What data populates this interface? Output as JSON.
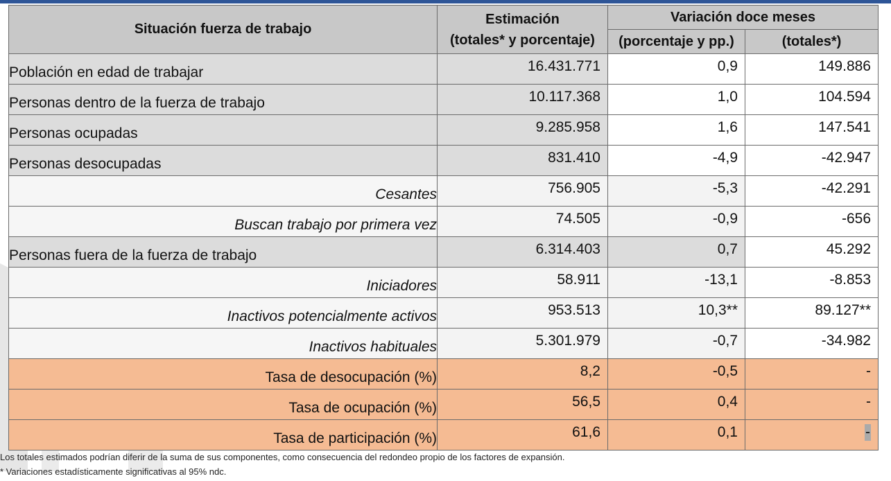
{
  "header": {
    "col1": "Situación fuerza de trabajo",
    "col2_line1": "Estimación",
    "col2_line2": "(totales* y porcentaje)",
    "group": "Variación doce meses",
    "col3": "(porcentaje y pp.)",
    "col4": "(totales*)"
  },
  "rows": [
    {
      "label": "Población en edad de trabajar",
      "estimacion": "16.431.771",
      "var_pct": "0,9",
      "var_tot": "149.886"
    },
    {
      "label": "Personas dentro de la fuerza de trabajo",
      "estimacion": "10.117.368",
      "var_pct": "1,0",
      "var_tot": "104.594"
    },
    {
      "label": "Personas ocupadas",
      "estimacion": "9.285.958",
      "var_pct": "1,6",
      "var_tot": "147.541"
    },
    {
      "label": "Personas desocupadas",
      "estimacion": "831.410",
      "var_pct": "-4,9",
      "var_tot": "-42.947"
    },
    {
      "label": "Cesantes",
      "estimacion": "756.905",
      "var_pct": "-5,3",
      "var_tot": "-42.291"
    },
    {
      "label": "Buscan trabajo por primera vez",
      "estimacion": "74.505",
      "var_pct": "-0,9",
      "var_tot": "-656"
    },
    {
      "label": "Personas fuera de la fuerza de trabajo",
      "estimacion": "6.314.403",
      "var_pct": "0,7",
      "var_tot": "45.292"
    },
    {
      "label": "Iniciadores",
      "estimacion": "58.911",
      "var_pct": "-13,1",
      "var_tot": "-8.853"
    },
    {
      "label": "Inactivos potencialmente activos",
      "estimacion": "953.513",
      "var_pct": "10,3**",
      "var_tot": "89.127**"
    },
    {
      "label": "Inactivos habituales",
      "estimacion": "5.301.979",
      "var_pct": "-0,7",
      "var_tot": "-34.982"
    },
    {
      "label": "Tasa de desocupación (%)",
      "estimacion": "8,2",
      "var_pct": "-0,5",
      "var_tot": "-"
    },
    {
      "label": "Tasa de ocupación (%)",
      "estimacion": "56,5",
      "var_pct": "0,4",
      "var_tot": "-"
    },
    {
      "label": "Tasa de participación (%)",
      "estimacion": "61,6",
      "var_pct": "0,1",
      "var_tot": "-"
    }
  ],
  "footnotes": {
    "note1": "Los totales estimados podrían diferir de la suma de sus componentes, como consecuencia del redondeo propio de los factores de expansión.",
    "note2": "* Variaciones estadísticamente significativas al 95% ndc."
  },
  "colors": {
    "header_bg": "#c8c8c8",
    "main_row_bg": "#dcdcdc",
    "sub_row_bg": "#f6f6f6",
    "rate_row_bg": "#f5bb93",
    "top_bar": "#2e5597"
  }
}
